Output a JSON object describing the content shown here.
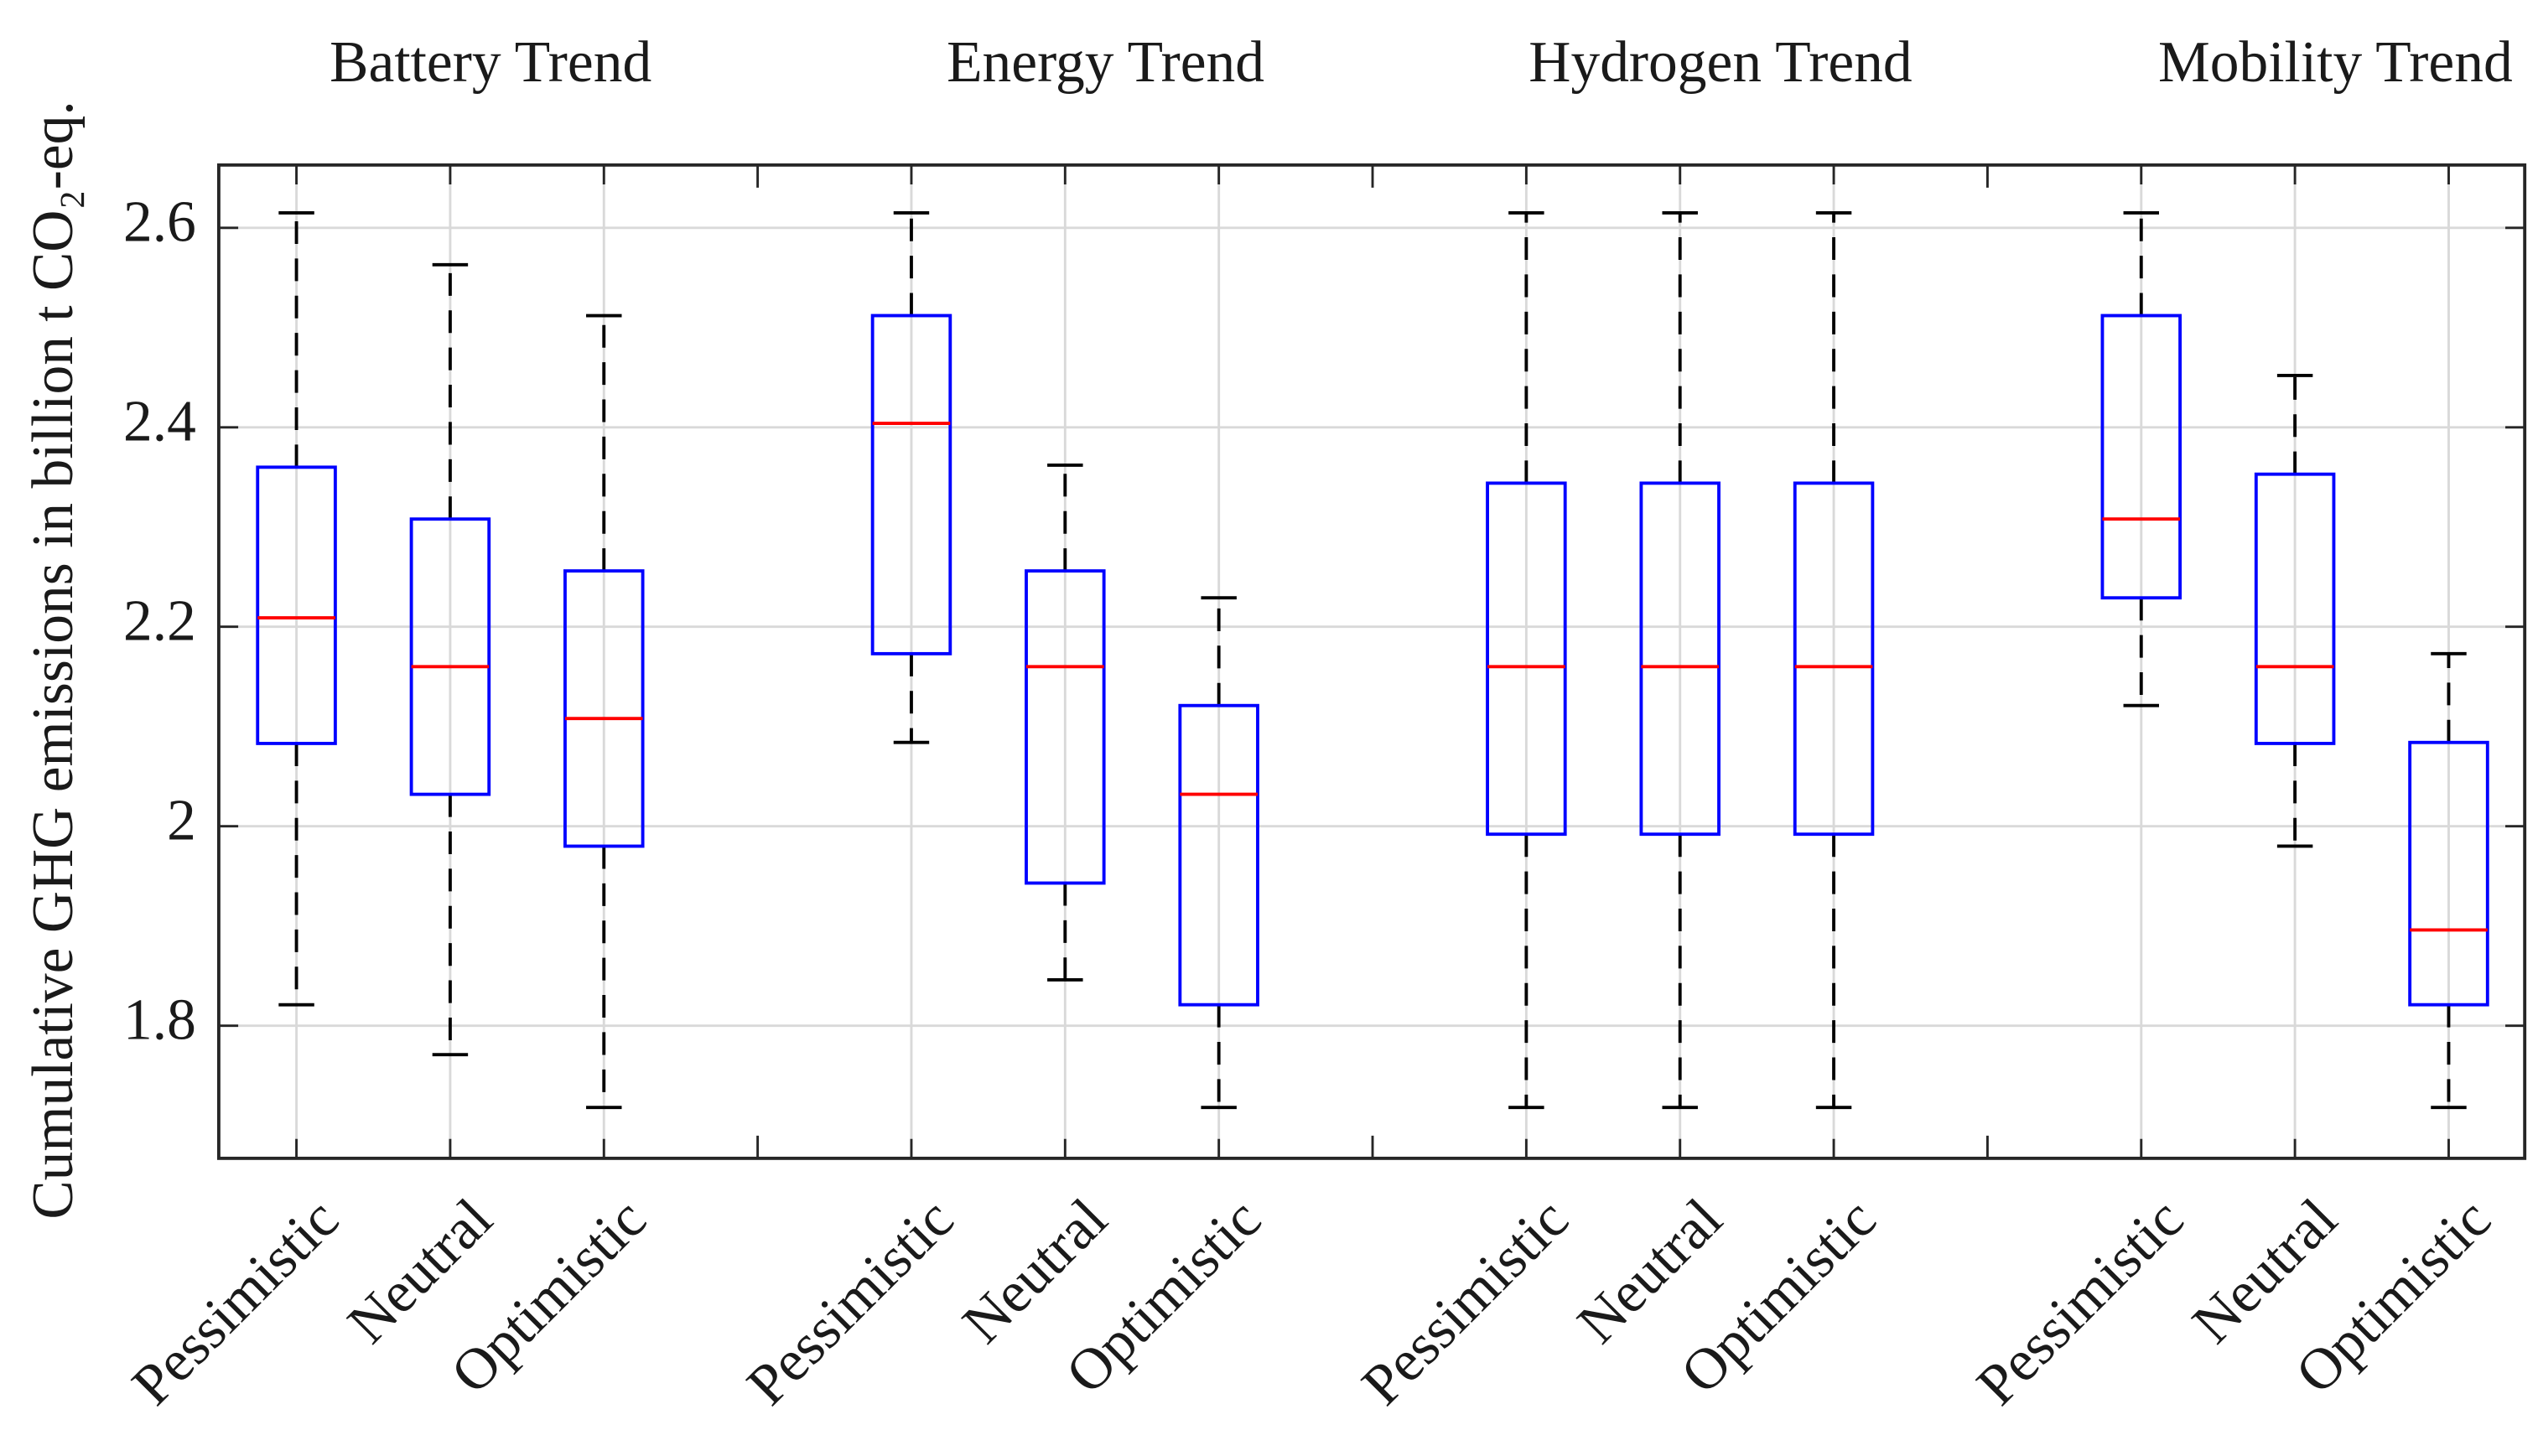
{
  "chart_data": {
    "type": "boxplot",
    "y_label": "Cumulative GHG emissions in billion t CO₂-eq.",
    "ylim": [
      1.667,
      2.663
    ],
    "yticks": [
      1.8,
      2,
      2.2,
      2.4,
      2.6
    ],
    "grid": true,
    "box_color": "#0000ff",
    "median_color": "#ff0000",
    "whisker_color": "#000000",
    "groups": [
      {
        "title": "Battery Trend",
        "boxes": [
          {
            "label": "Pessimistic",
            "min": 1.821,
            "q1": 2.083,
            "median": 2.209,
            "q3": 2.36,
            "max": 2.615
          },
          {
            "label": "Neutral",
            "min": 1.771,
            "q1": 2.032,
            "median": 2.16,
            "q3": 2.308,
            "max": 2.563
          },
          {
            "label": "Optimistic",
            "min": 1.718,
            "q1": 1.98,
            "median": 2.108,
            "q3": 2.256,
            "max": 2.512
          }
        ]
      },
      {
        "title": "Energy Trend",
        "boxes": [
          {
            "label": "Pessimistic",
            "min": 2.084,
            "q1": 2.173,
            "median": 2.404,
            "q3": 2.512,
            "max": 2.615
          },
          {
            "label": "Neutral",
            "min": 1.846,
            "q1": 1.943,
            "median": 2.16,
            "q3": 2.256,
            "max": 2.362
          },
          {
            "label": "Optimistic",
            "min": 1.718,
            "q1": 1.821,
            "median": 2.032,
            "q3": 2.121,
            "max": 2.229
          }
        ]
      },
      {
        "title": "Hydrogen Trend",
        "boxes": [
          {
            "label": "Pessimistic",
            "min": 1.718,
            "q1": 1.992,
            "median": 2.16,
            "q3": 2.344,
            "max": 2.615
          },
          {
            "label": "Neutral",
            "min": 1.718,
            "q1": 1.992,
            "median": 2.16,
            "q3": 2.344,
            "max": 2.615
          },
          {
            "label": "Optimistic",
            "min": 1.718,
            "q1": 1.992,
            "median": 2.16,
            "q3": 2.344,
            "max": 2.615
          }
        ]
      },
      {
        "title": "Mobility Trend",
        "boxes": [
          {
            "label": "Pessimistic",
            "min": 2.121,
            "q1": 2.229,
            "median": 2.308,
            "q3": 2.512,
            "max": 2.615
          },
          {
            "label": "Neutral",
            "min": 1.98,
            "q1": 2.083,
            "median": 2.16,
            "q3": 2.353,
            "max": 2.452
          },
          {
            "label": "Optimistic",
            "min": 1.718,
            "q1": 1.821,
            "median": 1.896,
            "q3": 2.084,
            "max": 2.173
          }
        ]
      }
    ]
  }
}
